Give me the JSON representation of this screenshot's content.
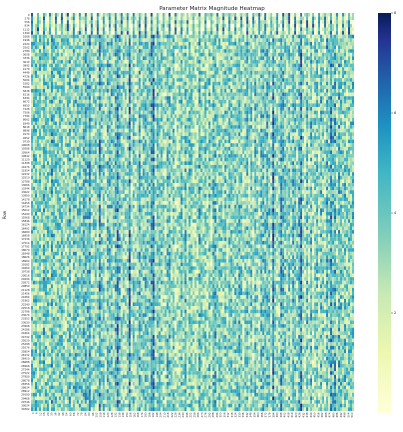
{
  "chart_data": {
    "type": "heatmap",
    "title": "Parameter Matrix Magnitude Heatmap",
    "ylabel": "Row",
    "xlabel": "",
    "colormap": "YlGnBu",
    "colorbar": {
      "range": [
        0,
        8
      ],
      "ticks": [
        2,
        4,
        6,
        8
      ],
      "tick_labels": [
        "2",
        "4",
        "6",
        "8"
      ]
    },
    "y_tick_labels": [
      "0",
      "278",
      "556",
      "834",
      "1112",
      "1390",
      "1668",
      "1946",
      "2224",
      "2502",
      "2780",
      "3058",
      "3336",
      "3614",
      "3892",
      "4170",
      "4448",
      "4726",
      "5004",
      "5282",
      "5560",
      "5838",
      "6116",
      "6394",
      "6672",
      "6950",
      "7228",
      "7506",
      "7784",
      "8062",
      "8340",
      "8618",
      "8896",
      "9174",
      "9452",
      "9730",
      "10008",
      "10286",
      "10564",
      "10842",
      "11120",
      "11398",
      "11676",
      "11954",
      "12232",
      "12510",
      "12788",
      "13066",
      "13344",
      "13622",
      "13900",
      "14178",
      "14456",
      "14734",
      "15012",
      "15290",
      "15568",
      "15846",
      "16124",
      "16402",
      "16680",
      "16958",
      "17236",
      "17514",
      "17792",
      "18070",
      "18348",
      "18626",
      "18904",
      "19182",
      "19460",
      "19738",
      "20016",
      "20294",
      "20572",
      "20850",
      "21128",
      "21406",
      "21684",
      "21962",
      "22240",
      "22518",
      "22796",
      "23074",
      "23352",
      "23630",
      "23908",
      "24186",
      "24464",
      "24742",
      "25020",
      "25298",
      "25576",
      "25854",
      "26132",
      "26410",
      "26688",
      "26966",
      "27244",
      "27522",
      "27800",
      "28078",
      "28356",
      "28634",
      "28912",
      "29190",
      "29468",
      "29746",
      "30024",
      "30302"
    ],
    "x_tick_labels": [
      "0",
      "6",
      "12",
      "18",
      "24",
      "30",
      "36",
      "42",
      "48",
      "54",
      "60",
      "66",
      "72",
      "78",
      "84",
      "90",
      "96",
      "102",
      "108",
      "114",
      "120",
      "126",
      "132",
      "138",
      "144",
      "150",
      "156",
      "162",
      "168",
      "174",
      "180",
      "186",
      "192",
      "198",
      "204",
      "210",
      "216",
      "222",
      "228",
      "234",
      "240",
      "246",
      "252",
      "258",
      "264",
      "270",
      "276",
      "282",
      "288",
      "294",
      "300",
      "306",
      "312",
      "318",
      "324",
      "330",
      "336",
      "342",
      "348",
      "354",
      "360",
      "366",
      "372",
      "378",
      "384",
      "390",
      "396",
      "402",
      "408",
      "414",
      "420",
      "426",
      "432",
      "438",
      "444",
      "450",
      "456",
      "462",
      "468",
      "474",
      "480",
      "486",
      "492",
      "498",
      "504",
      "510"
    ],
    "values_note": ""
  }
}
